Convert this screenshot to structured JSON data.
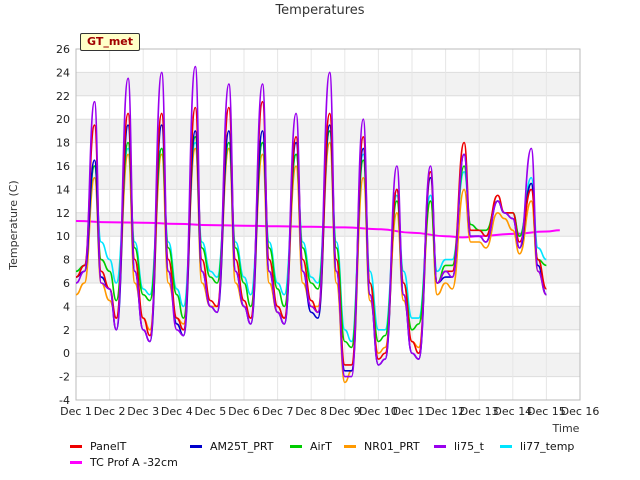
{
  "chart_data": {
    "type": "line",
    "title": "Temperatures",
    "xlabel": "Time",
    "ylabel": "Temperature (C)",
    "badge": "GT_met",
    "x_ticks": [
      "Dec 1",
      "Dec 2",
      "Dec 3",
      "Dec 4",
      "Dec 5",
      "Dec 6",
      "Dec 7",
      "Dec 8",
      "Dec 9",
      "Dec 10",
      "Dec 11",
      "Dec 12",
      "Dec 13",
      "Dec 14",
      "Dec 15",
      "Dec 16"
    ],
    "y_ticks": [
      "-4",
      "-2",
      "0",
      "2",
      "4",
      "6",
      "8",
      "10",
      "12",
      "14",
      "16",
      "18",
      "20",
      "22",
      "24",
      "26"
    ],
    "xlim": [
      1,
      16
    ],
    "ylim": [
      -4,
      26
    ],
    "grid": true,
    "legend_position": "bottom",
    "daily_extremes": {
      "days": [
        1.6,
        2.0,
        2.6,
        3.0,
        3.6,
        4.0,
        4.6,
        5.0,
        5.6,
        6.0,
        6.6,
        7.0,
        7.6,
        8.0,
        8.6,
        9.0,
        9.6,
        10.0,
        10.6,
        11.0,
        11.6,
        12.0,
        12.6,
        13.0,
        13.6,
        14.0,
        14.6,
        15.0,
        15.4
      ],
      "note_days_peak_trough": "alternating peak/trough"
    },
    "series": [
      {
        "name": "PanelT",
        "color": "#ee0000",
        "x": [
          1.0,
          1.25,
          1.55,
          1.75,
          2.0,
          2.2,
          2.55,
          2.75,
          3.0,
          3.2,
          3.55,
          3.75,
          4.0,
          4.2,
          4.55,
          4.75,
          5.0,
          5.2,
          5.55,
          5.75,
          6.0,
          6.2,
          6.55,
          6.75,
          7.0,
          7.2,
          7.55,
          7.75,
          8.0,
          8.2,
          8.55,
          8.75,
          9.0,
          9.2,
          9.55,
          9.75,
          10.0,
          10.2,
          10.55,
          10.75,
          11.0,
          11.2,
          11.55,
          11.75,
          12.0,
          12.2,
          12.55,
          12.75,
          13.0,
          13.2,
          13.55,
          13.75,
          14.0,
          14.2,
          14.55,
          14.75,
          15.0
        ],
        "y": [
          6.5,
          7.5,
          19.5,
          7,
          5.5,
          3,
          20.5,
          8,
          3,
          1.5,
          20.5,
          8,
          3,
          2,
          21,
          8,
          4.5,
          4,
          21,
          8,
          4.5,
          3,
          21.5,
          8,
          4,
          3,
          18.5,
          8,
          4.5,
          3.5,
          20.5,
          8,
          -1,
          -1,
          18.5,
          6,
          -0.5,
          0,
          14,
          6,
          1,
          0,
          15.5,
          6,
          7,
          7,
          18,
          10.5,
          10.5,
          10,
          13.5,
          12,
          12,
          9.5,
          14,
          8,
          5.5
        ]
      },
      {
        "name": "AM25T_PRT",
        "color": "#0000cc",
        "x": [
          1.0,
          1.25,
          1.55,
          1.75,
          2.0,
          2.2,
          2.55,
          2.75,
          3.0,
          3.2,
          3.55,
          3.75,
          4.0,
          4.2,
          4.55,
          4.75,
          5.0,
          5.2,
          5.55,
          5.75,
          6.0,
          6.2,
          6.55,
          6.75,
          7.0,
          7.2,
          7.55,
          7.75,
          8.0,
          8.2,
          8.55,
          8.75,
          9.0,
          9.2,
          9.55,
          9.75,
          10.0,
          10.2,
          10.55,
          10.75,
          11.0,
          11.2,
          11.55,
          11.75,
          12.0,
          12.2,
          12.55,
          12.75,
          13.0,
          13.2,
          13.55,
          13.75,
          14.0,
          14.2,
          14.55,
          14.75,
          15.0
        ],
        "y": [
          6.5,
          7,
          16.5,
          6.5,
          5.5,
          2,
          19.5,
          7,
          2,
          1,
          19.5,
          7,
          2.5,
          1.5,
          19,
          7,
          4,
          3.5,
          19,
          7,
          4,
          2.5,
          19,
          7,
          3.5,
          2.5,
          18,
          7,
          3.5,
          3,
          19.5,
          7,
          -1.5,
          -1.5,
          17.5,
          5,
          -1,
          -0.5,
          14,
          5,
          0,
          -0.5,
          15,
          6,
          6.5,
          6.5,
          17,
          10,
          10,
          9.5,
          13,
          12,
          11.5,
          9,
          14.5,
          7.5,
          5
        ]
      },
      {
        "name": "AirT",
        "color": "#00cc00",
        "x": [
          1.0,
          1.25,
          1.55,
          1.75,
          2.0,
          2.2,
          2.55,
          2.75,
          3.0,
          3.2,
          3.55,
          3.75,
          4.0,
          4.2,
          4.55,
          4.75,
          5.0,
          5.2,
          5.55,
          5.75,
          6.0,
          6.2,
          6.55,
          6.75,
          7.0,
          7.2,
          7.55,
          7.75,
          8.0,
          8.2,
          8.55,
          8.75,
          9.0,
          9.2,
          9.55,
          9.75,
          10.0,
          10.2,
          10.55,
          10.75,
          11.0,
          11.2,
          11.55,
          11.75,
          12.0,
          12.2,
          12.55,
          12.75,
          13.0,
          13.2,
          13.55,
          13.75,
          14.0,
          14.2,
          14.55,
          14.75,
          15.0
        ],
        "y": [
          7,
          7.5,
          16,
          8,
          7,
          4.5,
          18,
          9,
          5,
          4.5,
          17.5,
          9,
          5,
          3,
          18.5,
          9,
          6.5,
          6,
          18,
          9,
          6,
          4,
          18,
          9,
          5.5,
          4,
          17,
          9,
          6,
          5.5,
          19,
          9,
          1,
          0.5,
          16.5,
          6,
          1,
          1.5,
          13,
          6,
          2,
          2.5,
          13,
          6,
          7.5,
          7.5,
          16,
          11,
          10.5,
          10.5,
          13,
          12,
          12,
          10,
          14.5,
          8,
          7.5
        ]
      },
      {
        "name": "NR01_PRT",
        "color": "#ff9900",
        "x": [
          1.0,
          1.25,
          1.55,
          1.75,
          2.0,
          2.2,
          2.55,
          2.75,
          3.0,
          3.2,
          3.55,
          3.75,
          4.0,
          4.2,
          4.55,
          4.75,
          5.0,
          5.2,
          5.55,
          5.75,
          6.0,
          6.2,
          6.55,
          6.75,
          7.0,
          7.2,
          7.55,
          7.75,
          8.0,
          8.2,
          8.55,
          8.75,
          9.0,
          9.2,
          9.55,
          9.75,
          10.0,
          10.2,
          10.55,
          10.75,
          11.0,
          11.2,
          11.55,
          11.75,
          12.0,
          12.2,
          12.55,
          12.75,
          13.0,
          13.2,
          13.55,
          13.75,
          14.0,
          14.2,
          14.55,
          14.75,
          15.0
        ],
        "y": [
          5,
          6,
          15,
          6,
          4.5,
          3,
          17,
          6,
          3,
          2,
          17,
          6,
          3,
          2.5,
          17.5,
          6,
          4,
          4,
          17.5,
          6,
          4,
          3,
          17,
          6,
          3.5,
          3,
          16,
          6,
          4,
          4,
          18,
          6,
          -2.5,
          -1.5,
          15,
          4.5,
          0,
          0.5,
          12,
          4.5,
          1,
          0.5,
          13,
          5,
          6,
          5.5,
          14,
          9.5,
          9.5,
          9,
          12,
          11.5,
          10.5,
          8.5,
          13,
          7,
          5
        ]
      },
      {
        "name": "li75_t",
        "color": "#9900ee",
        "x": [
          1.0,
          1.25,
          1.55,
          1.75,
          2.0,
          2.2,
          2.55,
          2.75,
          3.0,
          3.2,
          3.55,
          3.75,
          4.0,
          4.2,
          4.55,
          4.75,
          5.0,
          5.2,
          5.55,
          5.75,
          6.0,
          6.2,
          6.55,
          6.75,
          7.0,
          7.2,
          7.55,
          7.75,
          8.0,
          8.2,
          8.55,
          8.75,
          9.0,
          9.2,
          9.55,
          9.75,
          10.0,
          10.2,
          10.55,
          10.75,
          11.0,
          11.2,
          11.55,
          11.75,
          12.0,
          12.2,
          12.55,
          12.75,
          13.0,
          13.2,
          13.55,
          13.75,
          14.0,
          14.2,
          14.55,
          14.75,
          15.0
        ],
        "y": [
          6,
          7,
          21.5,
          6,
          5.5,
          2,
          23.5,
          7,
          2,
          1,
          24,
          7,
          2,
          1.5,
          24.5,
          7,
          4,
          3.5,
          23,
          7,
          4,
          2.5,
          23,
          7,
          3.5,
          2.5,
          20.5,
          7,
          4,
          3.5,
          24,
          7,
          -2,
          -2,
          20,
          5,
          -1,
          -0.5,
          16,
          5,
          0,
          -0.5,
          16,
          6,
          7,
          6.5,
          17,
          10,
          10,
          9.5,
          13,
          12,
          11.5,
          9,
          17.5,
          7,
          5
        ]
      },
      {
        "name": "li77_temp",
        "color": "#00e5ff",
        "x": [
          1.0,
          1.25,
          1.55,
          1.75,
          2.0,
          2.2,
          2.55,
          2.75,
          3.0,
          3.2,
          3.55,
          3.75,
          4.0,
          4.2,
          4.55,
          4.75,
          5.0,
          5.2,
          5.55,
          5.75,
          6.0,
          6.2,
          6.55,
          6.75,
          7.0,
          7.2,
          7.55,
          7.75,
          8.0,
          8.2,
          8.55,
          8.75,
          9.0,
          9.2,
          9.55,
          9.75,
          10.0,
          10.2,
          10.55,
          10.75,
          11.0,
          11.2,
          11.55,
          11.75,
          12.0,
          12.2,
          12.55,
          12.75,
          13.0,
          13.2,
          13.55,
          13.75,
          14.0,
          14.2,
          14.55,
          14.75,
          15.0
        ],
        "y": [
          7,
          7.5,
          16,
          9.5,
          8,
          6,
          17.5,
          9.5,
          5.5,
          5,
          17.5,
          9.5,
          5.5,
          4,
          18,
          9.5,
          7,
          6.5,
          17.5,
          9.5,
          6.5,
          5,
          18,
          9.5,
          6,
          5,
          17,
          9.5,
          6.5,
          6,
          19,
          9.5,
          2,
          1,
          17,
          7,
          2,
          2,
          13.5,
          7,
          3,
          3,
          13.5,
          7,
          8,
          8,
          15.5,
          11,
          10.5,
          10,
          13,
          12,
          12,
          10,
          15,
          9,
          8
        ]
      },
      {
        "name": "TC Prof A -32cm",
        "color": "#ff00ff",
        "x": [
          1.0,
          2.0,
          3.0,
          4.0,
          5.0,
          6.0,
          7.0,
          8.0,
          9.0,
          10.0,
          11.0,
          12.0,
          12.5,
          13.0,
          14.0,
          15.0,
          15.4
        ],
        "y": [
          11.3,
          11.2,
          11.15,
          11.05,
          10.95,
          10.9,
          10.85,
          10.8,
          10.75,
          10.6,
          10.3,
          10.0,
          9.9,
          10.0,
          10.2,
          10.4,
          10.5
        ]
      }
    ]
  }
}
